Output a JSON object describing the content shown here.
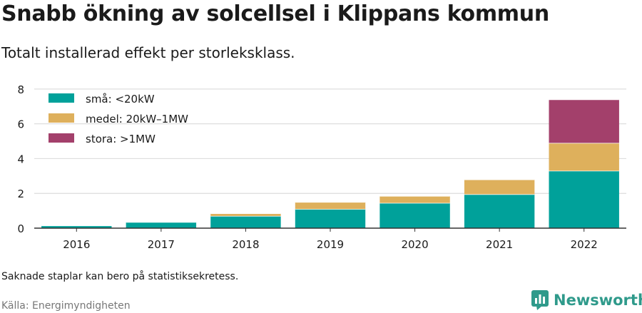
{
  "title": "Snabb ökning av solcellsel i Klippans kommun",
  "subtitle": "Totalt installerad effekt per storleksklass.",
  "note": "Saknade staplar kan bero på statistiksekretess.",
  "source": "Källa: Energimyndigheten",
  "brand": {
    "name": "Newsworthy",
    "icon": "newsworthy-logo-icon",
    "color": "#2f9a8b"
  },
  "colors": {
    "grid": "#dddddd",
    "axis": "#333333"
  },
  "chart_data": {
    "type": "bar",
    "stacked": true,
    "categories": [
      "2016",
      "2017",
      "2018",
      "2019",
      "2020",
      "2021",
      "2022"
    ],
    "series": [
      {
        "name": "små: <20kW",
        "color": "#00a19a",
        "values": [
          0.15,
          0.35,
          0.7,
          1.1,
          1.45,
          1.95,
          3.3
        ]
      },
      {
        "name": "medel: 20kW–1MW",
        "color": "#deb05c",
        "values": [
          0.0,
          0.0,
          0.15,
          0.4,
          0.4,
          0.85,
          1.6
        ]
      },
      {
        "name": "stora: >1MW",
        "color": "#a3406b",
        "values": [
          0.0,
          0.0,
          0.0,
          0.0,
          0.0,
          0.0,
          2.5
        ]
      }
    ],
    "yticks": [
      0,
      2,
      4,
      6,
      8
    ],
    "ylim": [
      0,
      8.2
    ],
    "grid": true,
    "legend": "top-left"
  }
}
